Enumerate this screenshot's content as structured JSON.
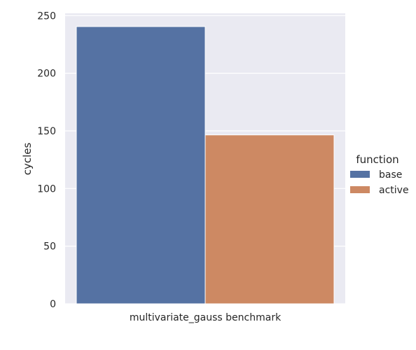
{
  "chart_data": {
    "type": "bar",
    "title": "",
    "xlabel": "",
    "ylabel": "cycles",
    "categories": [
      "multivariate_gauss benchmark"
    ],
    "series": [
      {
        "name": "base",
        "values": [
          240.5
        ],
        "color": "#5572a3"
      },
      {
        "name": "active",
        "values": [
          146.5
        ],
        "color": "#cd8963"
      }
    ],
    "ylim": [
      0,
      252
    ],
    "yticks": [
      0,
      50,
      100,
      150,
      200,
      250
    ],
    "grid": true,
    "legend": {
      "title": "function",
      "placement": "right"
    },
    "style": {
      "plot_background": "#eaeaf2",
      "grid_color": "#ffffff",
      "text_color": "#262626"
    }
  }
}
